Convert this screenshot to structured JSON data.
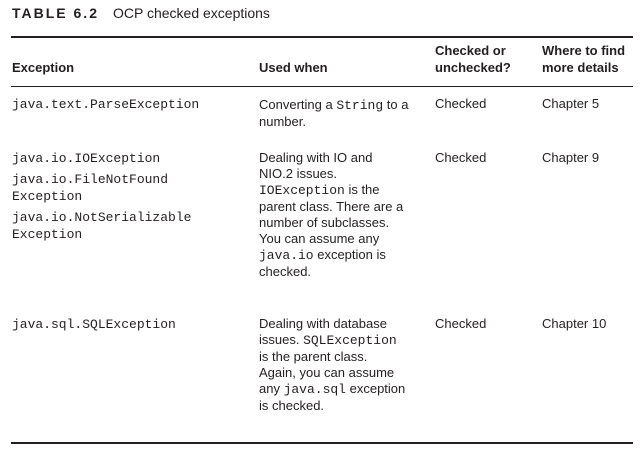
{
  "caption": {
    "label": "TABLE 6.2",
    "title": "OCP checked exceptions"
  },
  "headers": {
    "exception": "Exception",
    "used_when": "Used when",
    "checked_line1": "Checked or",
    "checked_line2": "unchecked?",
    "details_line1": "Where to find",
    "details_line2": "more details"
  },
  "rows": [
    {
      "exceptions": [
        "java.text.ParseException"
      ],
      "used_when": {
        "t1": "Converting a ",
        "c1": "String",
        "t2": " to a number."
      },
      "checked": "Checked",
      "details": "Chapter 5"
    },
    {
      "exceptions": [
        "java.io.IOException",
        "java.io.FileNotFound Exception",
        "java.io.NotSerializable Exception"
      ],
      "used_when": {
        "t1": "Dealing with IO and NIO.2 issues. ",
        "c1": "IOException",
        "t2": " is the parent class. There are a number of subclasses. You can assume any ",
        "c2": "java.io",
        "t3": " exception is checked."
      },
      "checked": "Checked",
      "details": "Chapter 9"
    },
    {
      "exceptions": [
        "java.sql.SQLException"
      ],
      "used_when": {
        "t1": "Dealing with database issues. ",
        "c1": "SQLException",
        "t2": " is the parent class. Again, you can assume any ",
        "c2": "java.sql",
        "t3": " exception is checked."
      },
      "checked": "Checked",
      "details": "Chapter 10"
    }
  ]
}
